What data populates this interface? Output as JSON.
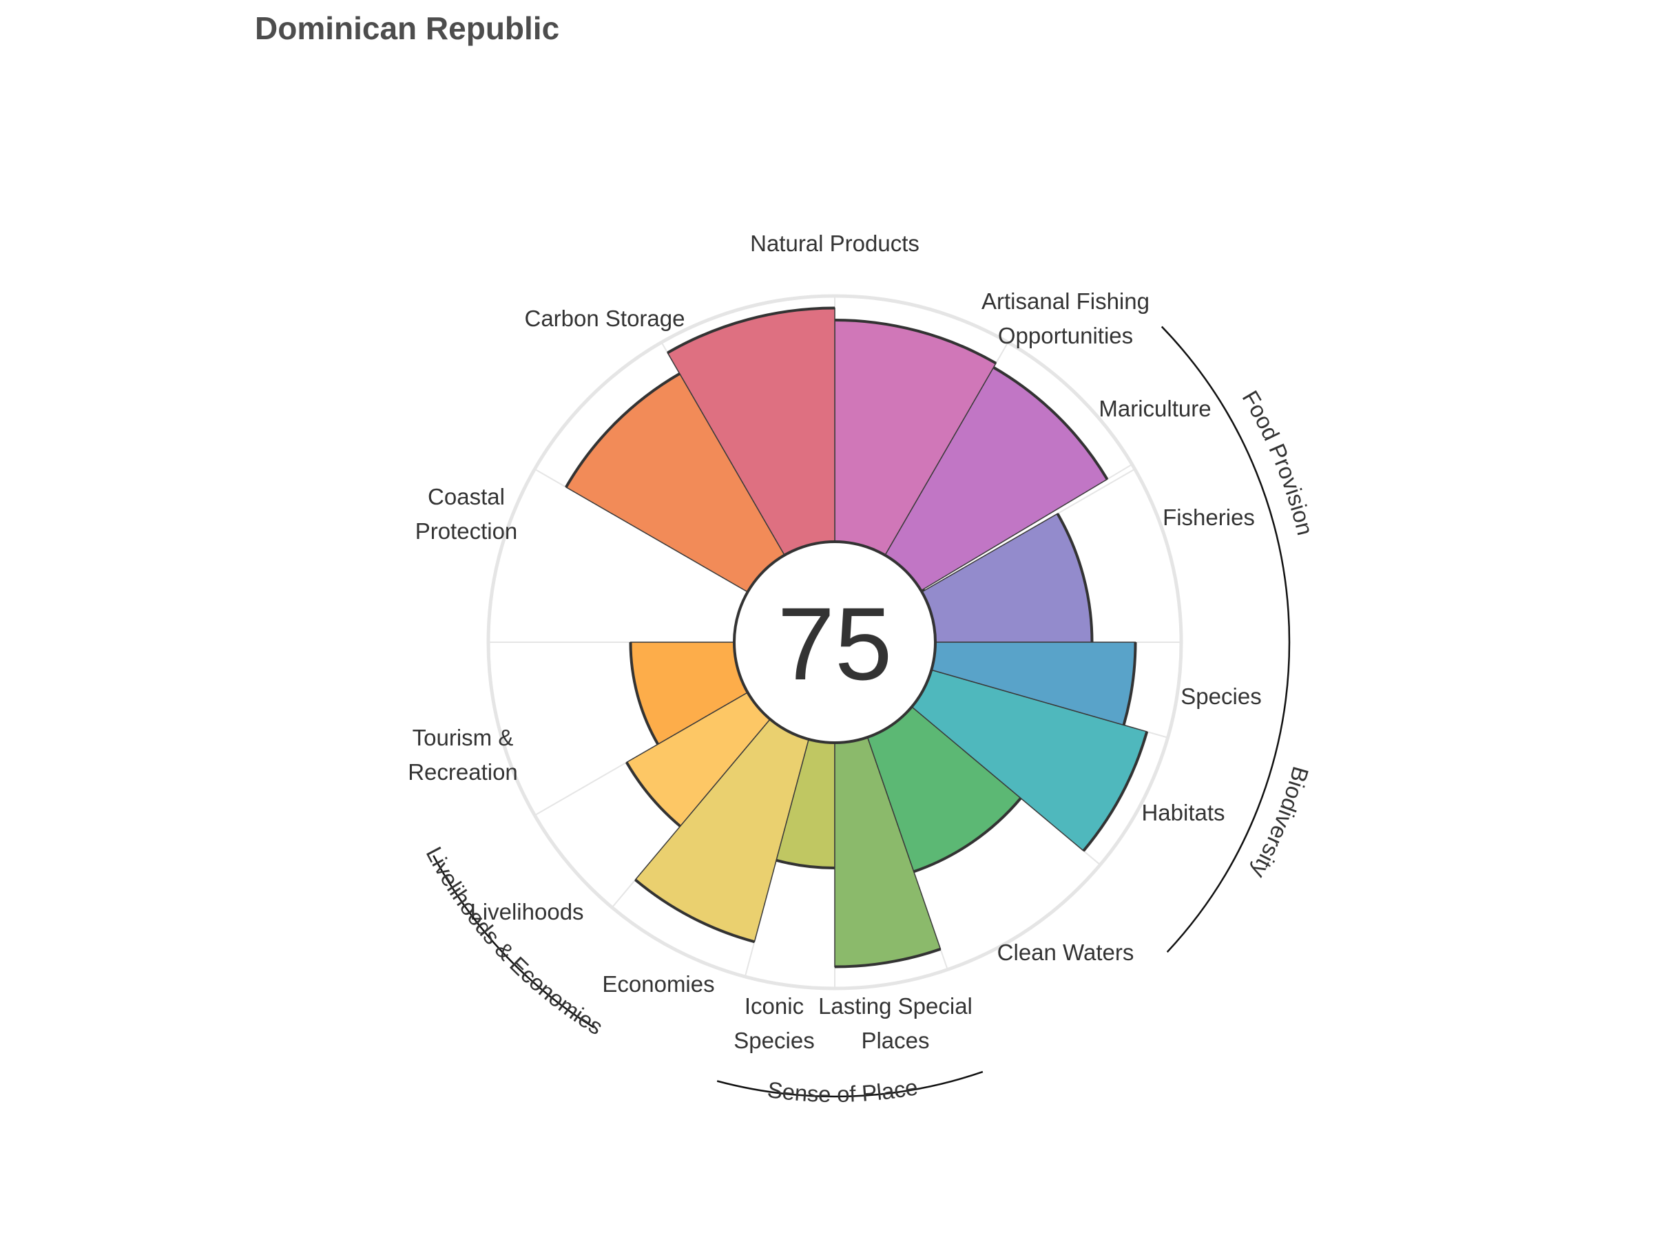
{
  "chart_data": {
    "type": "bar",
    "subtype": "polar-flower",
    "title": "Dominican Republic",
    "center_score": "75",
    "rlim": [
      0,
      100
    ],
    "grid": true,
    "categories": [
      {
        "label": "Fisheries",
        "value": 65,
        "color": "#938bcc"
      },
      {
        "label": "Mariculture",
        "value": 1,
        "color": "#c57bc5"
      },
      {
        "label": "Artisanal Fishing Opportunities",
        "value": 90,
        "color": "#c176c5"
      },
      {
        "label": "Natural Products",
        "value": 92,
        "color": "#d077b8"
      },
      {
        "label": "Carbon Storage",
        "value": 97,
        "color": "#de7081"
      },
      {
        "label": "Coastal Protection",
        "value": 87,
        "color": "#f28b58"
      },
      {
        "label": "Tourism & Recreation",
        "value": 43,
        "color": "#fdad4a"
      },
      {
        "label": "Livelihoods",
        "value": 58,
        "color": "#fdc765"
      },
      {
        "label": "Economies",
        "value": 87,
        "color": "#ead06f"
      },
      {
        "label": "Iconic Species",
        "value": 52,
        "color": "#c0c762"
      },
      {
        "label": "Lasting Special Places",
        "value": 93,
        "color": "#8bba6b"
      },
      {
        "label": "Clean Waters",
        "value": 59,
        "color": "#5cb874"
      },
      {
        "label": "Habitats",
        "value": 93,
        "color": "#4fb8bd"
      },
      {
        "label": "Species",
        "value": 83,
        "color": "#59a3c9"
      }
    ],
    "groups": [
      {
        "label": "Food Provision"
      },
      {
        "label": "Biodiversity"
      },
      {
        "label": "Sense of Place"
      },
      {
        "label": "Livelihoods & Economies"
      }
    ]
  }
}
